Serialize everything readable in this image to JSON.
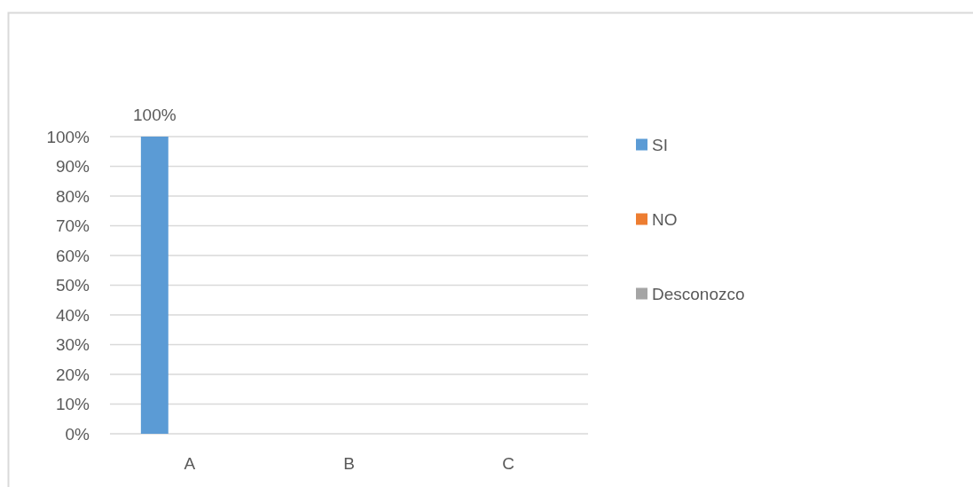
{
  "chart_data": {
    "type": "bar",
    "categories": [
      "A",
      "B",
      "C"
    ],
    "series": [
      {
        "name": "SI",
        "color": "#5b9bd5",
        "values": [
          100,
          null,
          null
        ],
        "value_labels": [
          "100%",
          null,
          null
        ]
      },
      {
        "name": "NO",
        "color": "#ed7d31",
        "values": [
          null,
          null,
          null
        ]
      },
      {
        "name": "Desconozco",
        "color": "#a5a5a5",
        "values": [
          null,
          null,
          null
        ]
      }
    ],
    "ylim": [
      0,
      100
    ],
    "yticks": [
      {
        "value": 0,
        "label": "0%"
      },
      {
        "value": 10,
        "label": "10%"
      },
      {
        "value": 20,
        "label": "20%"
      },
      {
        "value": 30,
        "label": "30%"
      },
      {
        "value": 40,
        "label": "40%"
      },
      {
        "value": 50,
        "label": "50%"
      },
      {
        "value": 60,
        "label": "60%"
      },
      {
        "value": 70,
        "label": "70%"
      },
      {
        "value": 80,
        "label": "80%"
      },
      {
        "value": 90,
        "label": "90%"
      },
      {
        "value": 100,
        "label": "100%"
      }
    ],
    "grid": "y",
    "legend": "right"
  }
}
